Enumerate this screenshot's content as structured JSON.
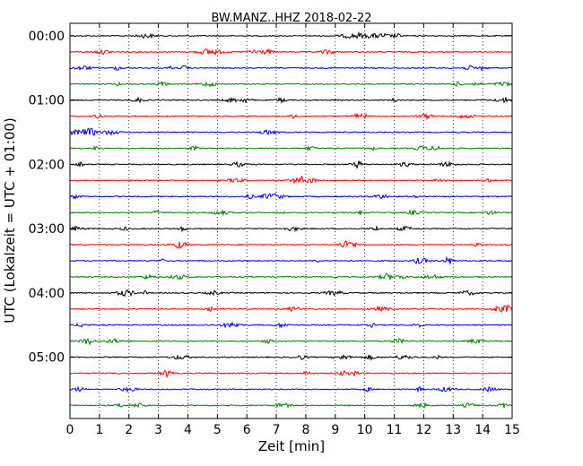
{
  "chart_data": {
    "type": "line",
    "title": "BW.MANZ..HHZ 2018-02-22",
    "xlabel": "Zeit  [min]",
    "ylabel": "UTC (Lokalzeit = UTC + 01:00)",
    "xlim": [
      0,
      15
    ],
    "xticks": [
      "0",
      "1",
      "2",
      "3",
      "4",
      "5",
      "6",
      "7",
      "8",
      "9",
      "10",
      "11",
      "12",
      "13",
      "14",
      "15"
    ],
    "yticks": [
      "00:00",
      "01:00",
      "02:00",
      "03:00",
      "04:00",
      "05:00"
    ],
    "grid": "vertical dotted at each minute",
    "row_interval_minutes": 15,
    "rows": 24,
    "colors": [
      "#000000",
      "#ff0000",
      "#0000ff",
      "#008000"
    ],
    "traces": [
      {
        "label": "00:00",
        "color": "#000000"
      },
      {
        "label": "00:15",
        "color": "#ff0000"
      },
      {
        "label": "00:30",
        "color": "#0000ff"
      },
      {
        "label": "00:45",
        "color": "#008000"
      },
      {
        "label": "01:00",
        "color": "#000000"
      },
      {
        "label": "01:15",
        "color": "#ff0000"
      },
      {
        "label": "01:30",
        "color": "#0000ff"
      },
      {
        "label": "01:45",
        "color": "#008000"
      },
      {
        "label": "02:00",
        "color": "#000000"
      },
      {
        "label": "02:15",
        "color": "#ff0000"
      },
      {
        "label": "02:30",
        "color": "#0000ff"
      },
      {
        "label": "02:45",
        "color": "#008000"
      },
      {
        "label": "03:00",
        "color": "#000000"
      },
      {
        "label": "03:15",
        "color": "#ff0000"
      },
      {
        "label": "03:30",
        "color": "#0000ff"
      },
      {
        "label": "03:45",
        "color": "#008000"
      },
      {
        "label": "04:00",
        "color": "#000000"
      },
      {
        "label": "04:15",
        "color": "#ff0000"
      },
      {
        "label": "04:30",
        "color": "#0000ff"
      },
      {
        "label": "04:45",
        "color": "#008000"
      },
      {
        "label": "05:00",
        "color": "#000000"
      },
      {
        "label": "05:15",
        "color": "#ff0000"
      },
      {
        "label": "05:30",
        "color": "#0000ff"
      },
      {
        "label": "05:45",
        "color": "#008000"
      }
    ]
  }
}
